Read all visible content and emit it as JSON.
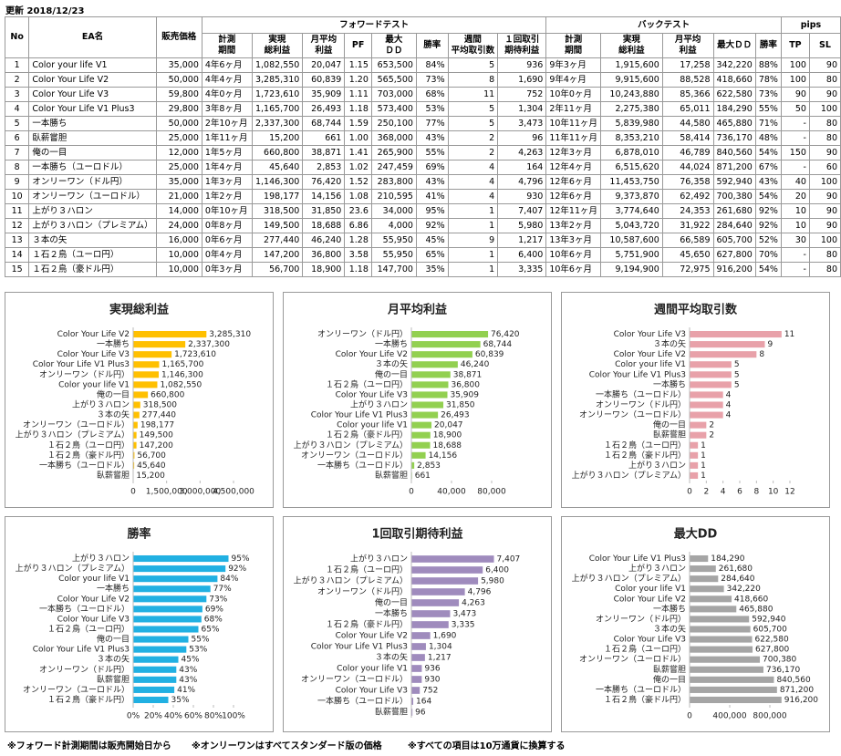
{
  "header": {
    "updated": "更新 2018/12/23"
  },
  "table": {
    "groups": [
      "No",
      "EA名",
      "販売価格",
      "フォワードテスト",
      "バックテスト",
      "pips"
    ],
    "columns": [
      [
        "計測",
        "期間"
      ],
      [
        "実現",
        "総利益"
      ],
      [
        "月平均",
        "利益"
      ],
      [
        "PF"
      ],
      [
        "最大",
        "ＤＤ"
      ],
      [
        "勝率"
      ],
      [
        "週間",
        "平均取引数"
      ],
      [
        "１回取引",
        "期待利益"
      ],
      [
        "計測",
        "期間"
      ],
      [
        "実現",
        "総利益"
      ],
      [
        "月平均",
        "利益"
      ],
      [
        "最大ＤＤ"
      ],
      [
        "勝率"
      ],
      [
        "TP"
      ],
      [
        "SL"
      ]
    ],
    "rows": [
      [
        "1",
        "Color your life V1",
        "35,000",
        "4年6ヶ月",
        "1,082,550",
        "20,047",
        "1.15",
        "653,500",
        "84%",
        "5",
        "936",
        "9年3ヶ月",
        "1,915,600",
        "17,258",
        "342,220",
        "88%",
        "100",
        "90"
      ],
      [
        "2",
        "Color Your Life V2",
        "50,000",
        "4年4ヶ月",
        "3,285,310",
        "60,839",
        "1.20",
        "565,500",
        "73%",
        "8",
        "1,690",
        "9年4ヶ月",
        "9,915,600",
        "88,528",
        "418,660",
        "78%",
        "100",
        "80"
      ],
      [
        "3",
        "Color Your Life V3",
        "59,800",
        "4年0ヶ月",
        "1,723,610",
        "35,909",
        "1.11",
        "703,000",
        "68%",
        "11",
        "752",
        "10年0ヶ月",
        "10,243,880",
        "85,366",
        "622,580",
        "73%",
        "90",
        "90"
      ],
      [
        "4",
        "Color Your Life V1 Plus3",
        "29,800",
        "3年8ヶ月",
        "1,165,700",
        "26,493",
        "1.18",
        "573,400",
        "53%",
        "5",
        "1,304",
        "2年11ヶ月",
        "2,275,380",
        "65,011",
        "184,290",
        "55%",
        "50",
        "100"
      ],
      [
        "5",
        "一本勝ち",
        "50,000",
        "2年10ヶ月",
        "2,337,300",
        "68,744",
        "1.59",
        "250,100",
        "77%",
        "5",
        "3,473",
        "10年11ヶ月",
        "5,839,980",
        "44,580",
        "465,880",
        "71%",
        "-",
        "80"
      ],
      [
        "6",
        "臥薪嘗胆",
        "25,000",
        "1年11ヶ月",
        "15,200",
        "661",
        "1.00",
        "368,000",
        "43%",
        "2",
        "96",
        "11年11ヶ月",
        "8,353,210",
        "58,414",
        "736,170",
        "48%",
        "-",
        "80"
      ],
      [
        "7",
        "俺の一目",
        "12,000",
        "1年5ヶ月",
        "660,800",
        "38,871",
        "1.41",
        "265,900",
        "55%",
        "2",
        "4,263",
        "12年3ヶ月",
        "6,878,010",
        "46,789",
        "840,560",
        "54%",
        "150",
        "90"
      ],
      [
        "8",
        "一本勝ち（ユーロドル）",
        "25,000",
        "1年4ヶ月",
        "45,640",
        "2,853",
        "1.02",
        "247,459",
        "69%",
        "4",
        "164",
        "12年4ヶ月",
        "6,515,620",
        "44,024",
        "871,200",
        "67%",
        "-",
        "60"
      ],
      [
        "9",
        "オンリーワン（ドル円）",
        "35,000",
        "1年3ヶ月",
        "1,146,300",
        "76,420",
        "1.52",
        "283,800",
        "43%",
        "4",
        "4,796",
        "12年6ヶ月",
        "11,453,750",
        "76,358",
        "592,940",
        "43%",
        "40",
        "100"
      ],
      [
        "10",
        "オンリーワン（ユーロドル）",
        "21,000",
        "1年2ヶ月",
        "198,177",
        "14,156",
        "1.08",
        "210,595",
        "41%",
        "4",
        "930",
        "12年6ヶ月",
        "9,373,870",
        "62,492",
        "700,380",
        "54%",
        "20",
        "90"
      ],
      [
        "11",
        "上がり３ハロン",
        "14,000",
        "0年10ヶ月",
        "318,500",
        "31,850",
        "23.6",
        "34,000",
        "95%",
        "1",
        "7,407",
        "12年11ヶ月",
        "3,774,640",
        "24,353",
        "261,680",
        "92%",
        "10",
        "90"
      ],
      [
        "12",
        "上がり３ハロン（プレミアム）",
        "24,000",
        "0年8ヶ月",
        "149,500",
        "18,688",
        "6.86",
        "4,000",
        "92%",
        "1",
        "5,980",
        "13年2ヶ月",
        "5,043,720",
        "31,922",
        "284,640",
        "92%",
        "10",
        "90"
      ],
      [
        "13",
        "３本の矢",
        "16,000",
        "0年6ヶ月",
        "277,440",
        "46,240",
        "1.28",
        "55,950",
        "45%",
        "9",
        "1,217",
        "13年3ヶ月",
        "10,587,600",
        "66,589",
        "605,700",
        "52%",
        "30",
        "100"
      ],
      [
        "14",
        "１石２鳥（ユーロ円）",
        "10,000",
        "0年4ヶ月",
        "147,200",
        "36,800",
        "3.58",
        "55,950",
        "65%",
        "1",
        "6,400",
        "10年6ヶ月",
        "5,751,900",
        "45,650",
        "627,800",
        "70%",
        "-",
        "80"
      ],
      [
        "15",
        "１石２鳥（豪ドル円）",
        "10,000",
        "0年3ヶ月",
        "56,700",
        "18,900",
        "1.18",
        "147,700",
        "35%",
        "1",
        "3,335",
        "10年6ヶ月",
        "9,194,900",
        "72,975",
        "916,200",
        "54%",
        "-",
        "80"
      ]
    ]
  },
  "chart_data": [
    {
      "type": "barh",
      "title": "実現総利益",
      "color": "#ffc000",
      "categories": [
        "Color Your Life V2",
        "一本勝ち",
        "Color Your Life V3",
        "Color Your Life V1 Plus3",
        "オンリーワン（ドル円）",
        "Color your life V1",
        "俺の一目",
        "上がり３ハロン",
        "３本の矢",
        "オンリーワン（ユーロドル）",
        "上がり３ハロン（プレミアム）",
        "１石２鳥（ユーロ円）",
        "１石２鳥（豪ドル円）",
        "一本勝ち（ユーロドル）",
        "臥薪嘗胆"
      ],
      "values": [
        3285310,
        2337300,
        1723610,
        1165700,
        1146300,
        1082550,
        660800,
        318500,
        277440,
        198177,
        149500,
        147200,
        56700,
        45640,
        15200
      ],
      "value_labels": [
        "3,285,310",
        "2,337,300",
        "1,723,610",
        "1,165,700",
        "1,146,300",
        "1,082,550",
        "660,800",
        "318,500",
        "277,440",
        "198,177",
        "149,500",
        "147,200",
        "56,700",
        "45,640",
        "15,200"
      ],
      "xlim": [
        0,
        4500000
      ],
      "xticks": [
        0,
        {
          "value": 1500000,
          "label": "1,500,000"
        },
        {
          "value": 3000000,
          "label": "3,000,000"
        },
        {
          "value": 4500000,
          "label": "4,500,000"
        }
      ]
    },
    {
      "type": "barh",
      "title": "月平均利益",
      "color": "#92d050",
      "categories": [
        "オンリーワン（ドル円）",
        "一本勝ち",
        "Color Your Life V2",
        "３本の矢",
        "俺の一目",
        "１石２鳥（ユーロ円）",
        "Color Your Life V3",
        "上がり３ハロン",
        "Color Your Life V1 Plus3",
        "Color your life V1",
        "１石２鳥（豪ドル円）",
        "上がり３ハロン（プレミアム）",
        "オンリーワン（ユーロドル）",
        "一本勝ち（ユーロドル）",
        "臥薪嘗胆"
      ],
      "values": [
        76420,
        68744,
        60839,
        46240,
        38871,
        36800,
        35909,
        31850,
        26493,
        20047,
        18900,
        18688,
        14156,
        2853,
        661
      ],
      "value_labels": [
        "76,420",
        "68,744",
        "60,839",
        "46,240",
        "38,871",
        "36,800",
        "35,909",
        "31,850",
        "26,493",
        "20,047",
        "18,900",
        "18,688",
        "14,156",
        "2,853",
        "661"
      ],
      "xlim": [
        0,
        100000
      ],
      "xticks": [
        0,
        {
          "value": 40000,
          "label": "40,000"
        },
        {
          "value": 80000,
          "label": "80,000"
        }
      ]
    },
    {
      "type": "barh",
      "title": "週間平均取引数",
      "color": "#e8a1a9",
      "categories": [
        "Color Your Life V3",
        "３本の矢",
        "Color Your Life V2",
        "Color your life V1",
        "Color Your Life V1 Plus3",
        "一本勝ち",
        "一本勝ち（ユーロドル）",
        "オンリーワン（ドル円）",
        "オンリーワン（ユーロドル）",
        "俺の一目",
        "臥薪嘗胆",
        "１石２鳥（ユーロ円）",
        "１石２鳥（豪ドル円）",
        "上がり３ハロン",
        "上がり３ハロン（プレミアム）"
      ],
      "values": [
        11,
        9,
        8,
        5,
        5,
        5,
        4,
        4,
        4,
        2,
        2,
        1,
        1,
        1,
        1
      ],
      "xlim": [
        0,
        12
      ],
      "xticks": [
        0,
        2,
        4,
        6,
        8,
        10,
        12
      ]
    },
    {
      "type": "barh",
      "title": "勝率",
      "color": "#21b0e2",
      "categories": [
        "上がり３ハロン",
        "上がり３ハロン（プレミアム）",
        "Color your life V1",
        "一本勝ち",
        "Color Your Life V2",
        "一本勝ち（ユーロドル）",
        "Color Your Life V3",
        "１石２鳥（ユーロ円）",
        "俺の一目",
        "Color Your Life V1 Plus3",
        "３本の矢",
        "オンリーワン（ドル円）",
        "臥薪嘗胆",
        "オンリーワン（ユーロドル）",
        "１石２鳥（豪ドル円）"
      ],
      "values": [
        95,
        92,
        84,
        77,
        73,
        69,
        68,
        65,
        55,
        53,
        45,
        43,
        43,
        41,
        35
      ],
      "value_labels": [
        "95%",
        "92%",
        "84%",
        "77%",
        "73%",
        "69%",
        "68%",
        "65%",
        "55%",
        "53%",
        "45%",
        "43%",
        "43%",
        "41%",
        "35%"
      ],
      "xlim": [
        0,
        100
      ],
      "xticks": [
        {
          "value": 0,
          "label": "0%"
        },
        {
          "value": 20,
          "label": "20%"
        },
        {
          "value": 40,
          "label": "40%"
        },
        {
          "value": 60,
          "label": "60%"
        },
        {
          "value": 80,
          "label": "80%"
        },
        {
          "value": 100,
          "label": "100%"
        }
      ]
    },
    {
      "type": "barh",
      "title": "1回取引期待利益",
      "color": "#9f8bbd",
      "categories": [
        "上がり３ハロン",
        "１石２鳥（ユーロ円）",
        "上がり３ハロン（プレミアム）",
        "オンリーワン（ドル円）",
        "俺の一目",
        "一本勝ち",
        "１石２鳥（豪ドル円）",
        "Color Your Life V2",
        "Color Your Life V1 Plus3",
        "３本の矢",
        "Color your life V1",
        "オンリーワン（ユーロドル）",
        "Color Your Life V3",
        "一本勝ち（ユーロドル）",
        "臥薪嘗胆"
      ],
      "values": [
        7407,
        6400,
        5980,
        4796,
        4263,
        3473,
        3335,
        1690,
        1304,
        1217,
        936,
        930,
        752,
        164,
        96
      ],
      "value_labels": [
        "7,407",
        "6,400",
        "5,980",
        "4,796",
        "4,263",
        "3,473",
        "3,335",
        "1,690",
        "1,304",
        "1,217",
        "936",
        "930",
        "752",
        "164",
        "96"
      ],
      "xlim": [
        0,
        9000
      ]
    },
    {
      "type": "barh",
      "title": "最大DD",
      "color": "#a5a5a5",
      "categories": [
        "Color Your Life V1 Plus3",
        "上がり３ハロン",
        "上がり３ハロン（プレミアム）",
        "Color your life V1",
        "Color Your Life V2",
        "一本勝ち",
        "オンリーワン（ドル円）",
        "３本の矢",
        "Color Your Life V3",
        "１石２鳥（ユーロ円）",
        "オンリーワン（ユーロドル）",
        "臥薪嘗胆",
        "俺の一目",
        "一本勝ち（ユーロドル）",
        "１石２鳥（豪ドル円）"
      ],
      "values": [
        184290,
        261680,
        284640,
        342220,
        418660,
        465880,
        592940,
        605700,
        622580,
        627800,
        700380,
        736170,
        840560,
        871200,
        916200
      ],
      "value_labels": [
        "184,290",
        "261,680",
        "284,640",
        "342,220",
        "418,660",
        "465,880",
        "592,940",
        "605,700",
        "622,580",
        "627,800",
        "700,380",
        "736,170",
        "840,560",
        "871,200",
        "916,200"
      ],
      "xlim": [
        0,
        1000000
      ],
      "xticks": [
        0,
        {
          "value": 400000,
          "label": "400,000"
        },
        {
          "value": 800000,
          "label": "800,000"
        }
      ]
    }
  ],
  "footnotes": [
    "※フォワード計測期間は販売開始日から",
    "※オンリーワンはすべてスタンダード版の価格",
    "※すべての項目は10万通貨に換算する"
  ]
}
